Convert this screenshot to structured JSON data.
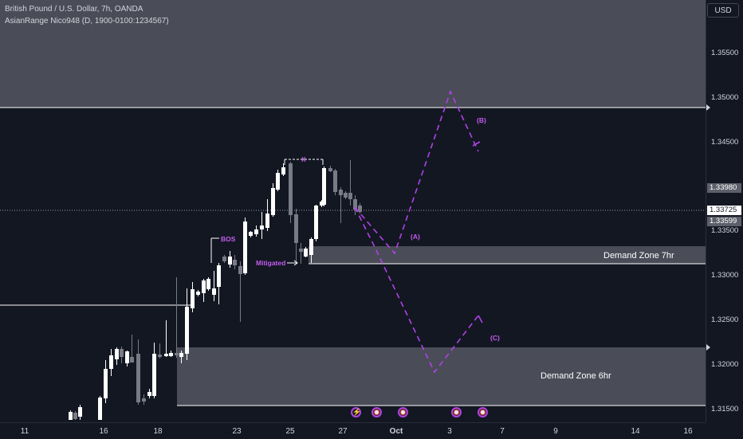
{
  "header": {
    "title": "British Pound / U.S. Dollar, 7h, OANDA",
    "indicator": "AsianRange Nico948 (D, 1900-0100:1234567)"
  },
  "currency": "USD",
  "price_axis": {
    "ticks": [
      "1.35500",
      "1.35000",
      "1.34500",
      "1.33500",
      "1.33000",
      "1.32500",
      "1.32000",
      "1.31500"
    ],
    "labels": {
      "upper": "1.33980",
      "current": "1.33725",
      "lower": "1.33599"
    }
  },
  "time_axis": [
    "11",
    "16",
    "18",
    "23",
    "25",
    "27",
    "Oct",
    "3",
    "7",
    "9",
    "14",
    "16"
  ],
  "zones": {
    "demand_7hr": "Demand Zone 7hr",
    "demand_6hr": "Demand Zone 6hr"
  },
  "annotations": {
    "bos": "BOS",
    "mitigated": "Mitigated",
    "x_label": "X",
    "wave_a": "(A)",
    "wave_b": "(B)",
    "wave_c": "(C)"
  },
  "events": [
    {
      "icon": "lightning-icon",
      "glyph": "⚡"
    },
    {
      "icon": "us-flag-icon",
      "glyph": ""
    },
    {
      "icon": "us-flag-icon",
      "glyph": ""
    },
    {
      "icon": "us-flag-icon",
      "glyph": ""
    },
    {
      "icon": "us-flag-icon",
      "glyph": ""
    }
  ],
  "colors": {
    "background": "#131722",
    "bull_candle": "#ffffff",
    "bear_candle": "#787b86",
    "zone_fill": "#4a4c56",
    "projection": "#b042e8"
  }
}
